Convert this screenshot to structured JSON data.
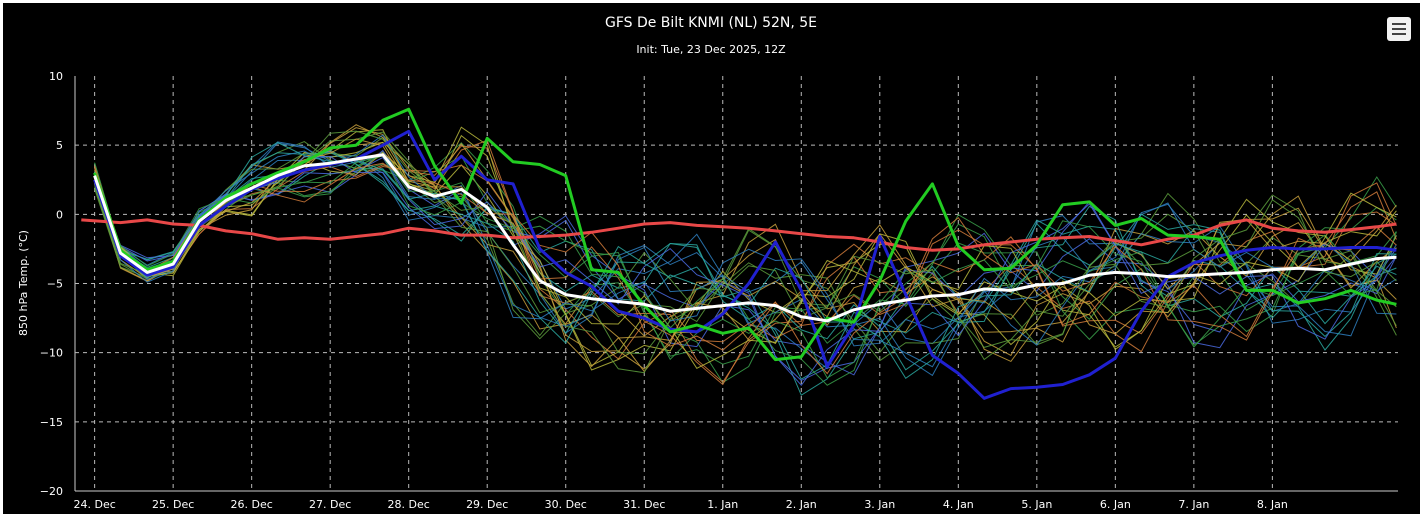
{
  "chart_data": {
    "type": "line",
    "title": "GFS De Bilt KNMI (NL) 52N, 5E",
    "subtitle": "Init: Tue, 23 Dec 2025, 12Z",
    "ylabel": "850 hPa Temp. (°C)",
    "xlabel": "",
    "ylim": [
      -20,
      10
    ],
    "yticks": [
      "10",
      "5",
      "0",
      "−5",
      "−10",
      "−15",
      "−20"
    ],
    "ytick_values": [
      10,
      5,
      0,
      -5,
      -10,
      -15,
      -20
    ],
    "x_range_days": [
      23.75,
      40.6
    ],
    "xticks": [
      "24. Dec",
      "25. Dec",
      "26. Dec",
      "27. Dec",
      "28. Dec",
      "29. Dec",
      "30. Dec",
      "31. Dec",
      "1. Jan",
      "2. Jan",
      "3. Jan",
      "4. Jan",
      "5. Jan",
      "6. Jan",
      "7. Jan",
      "8. Jan"
    ],
    "grid": true,
    "colors": {
      "background": "#000000",
      "grid": "#bbbbbb",
      "text": "#ffffff",
      "mean": "#ffffff",
      "control": "#2020d0",
      "operational": "#22cc22",
      "climate": "#e84848",
      "members": [
        "#2e7fc0",
        "#3aa04a",
        "#c8a03c",
        "#2aa8a0",
        "#d07a3a",
        "#5c9c3c",
        "#4a6ae0",
        "#b8b83c"
      ]
    },
    "series": [
      {
        "role": "mean",
        "x": [
          24.0,
          24.33,
          24.67,
          25.0,
          25.33,
          25.67,
          26.0,
          26.33,
          26.67,
          27.0,
          27.33,
          27.67,
          28.0,
          28.33,
          28.67,
          29.0,
          29.33,
          29.67,
          30.0,
          30.33,
          30.67,
          31.0,
          31.33,
          31.67,
          32.0,
          32.33,
          32.67,
          33.0,
          33.33,
          33.67,
          34.0,
          34.33,
          34.67,
          35.0,
          35.33,
          35.67,
          36.0,
          36.33,
          36.67,
          37.0,
          37.33,
          37.67,
          38.0,
          38.33,
          38.67,
          39.0,
          39.33,
          39.67,
          40.0,
          40.33,
          40.58
        ],
        "values": [
          2.8,
          -2.8,
          -4.2,
          -3.6,
          -0.5,
          1.0,
          1.9,
          2.8,
          3.5,
          3.7,
          4.0,
          4.3,
          2.0,
          1.3,
          1.8,
          0.5,
          -2.2,
          -4.8,
          -5.8,
          -6.1,
          -6.3,
          -6.5,
          -7.0,
          -6.8,
          -6.6,
          -6.4,
          -6.6,
          -7.4,
          -7.7,
          -6.9,
          -6.5,
          -6.2,
          -5.9,
          -5.8,
          -5.4,
          -5.5,
          -5.1,
          -5.0,
          -4.4,
          -4.2,
          -4.3,
          -4.5,
          -4.4,
          -4.3,
          -4.2,
          -4.0,
          -3.9,
          -4.0,
          -3.6,
          -3.2,
          -3.1
        ]
      },
      {
        "role": "control",
        "x": [
          24.0,
          24.33,
          24.67,
          25.0,
          25.33,
          25.67,
          26.0,
          26.33,
          26.67,
          27.0,
          27.33,
          27.67,
          28.0,
          28.33,
          28.67,
          29.0,
          29.33,
          29.67,
          30.0,
          30.33,
          30.67,
          31.0,
          31.33,
          31.67,
          32.0,
          32.33,
          32.67,
          33.0,
          33.33,
          33.67,
          34.0,
          34.33,
          34.67,
          35.0,
          35.33,
          35.67,
          36.0,
          36.33,
          36.67,
          37.0,
          37.33,
          37.67,
          38.0,
          38.33,
          38.67,
          39.0,
          39.33,
          39.67,
          40.0,
          40.33,
          40.58
        ],
        "values": [
          2.5,
          -3.0,
          -4.4,
          -3.8,
          -0.8,
          0.6,
          1.8,
          2.6,
          3.2,
          3.6,
          4.0,
          5.0,
          6.0,
          2.5,
          4.2,
          2.5,
          2.2,
          -2.5,
          -4.2,
          -5.2,
          -7.0,
          -7.5,
          -8.3,
          -8.5,
          -7.2,
          -5.0,
          -2.0,
          -5.5,
          -11.0,
          -8.0,
          -1.6,
          -5.8,
          -10.2,
          -11.5,
          -13.3,
          -12.6,
          -12.5,
          -12.3,
          -11.6,
          -10.4,
          -7.0,
          -4.5,
          -3.5,
          -3.0,
          -2.6,
          -2.4,
          -2.5,
          -2.5,
          -2.4,
          -2.4,
          -2.6
        ]
      },
      {
        "role": "operational",
        "x": [
          24.0,
          24.33,
          24.67,
          25.0,
          25.33,
          25.67,
          26.0,
          26.33,
          26.67,
          27.0,
          27.33,
          27.67,
          28.0,
          28.33,
          28.67,
          29.0,
          29.33,
          29.67,
          30.0,
          30.33,
          30.67,
          31.0,
          31.33,
          31.67,
          32.0,
          32.33,
          32.67,
          33.0,
          33.33,
          33.67,
          34.0,
          34.33,
          34.67,
          35.0,
          35.33,
          35.67,
          36.0,
          36.33,
          36.67,
          37.0,
          37.33,
          37.67,
          38.0,
          38.33,
          38.67,
          39.0,
          39.33,
          39.67,
          40.0,
          40.33,
          40.58
        ],
        "values": [
          3.0,
          -2.6,
          -4.0,
          -3.4,
          -0.4,
          1.2,
          2.2,
          3.0,
          3.8,
          4.8,
          5.0,
          6.8,
          7.6,
          3.5,
          0.8,
          5.5,
          3.8,
          3.6,
          2.8,
          -4.0,
          -4.2,
          -6.6,
          -8.5,
          -8.0,
          -8.6,
          -8.2,
          -10.5,
          -10.3,
          -7.5,
          -7.8,
          -4.8,
          -0.5,
          2.2,
          -2.3,
          -4.0,
          -3.9,
          -2.2,
          0.7,
          0.9,
          -0.8,
          -0.3,
          -1.5,
          -1.6,
          -1.8,
          -5.5,
          -5.5,
          -6.4,
          -6.1,
          -5.5,
          -6.2,
          -6.5
        ]
      },
      {
        "role": "climate",
        "x": [
          23.83,
          24.33,
          24.67,
          25.0,
          25.33,
          25.67,
          26.0,
          26.33,
          26.67,
          27.0,
          27.33,
          27.67,
          28.0,
          28.33,
          28.67,
          29.0,
          29.33,
          29.67,
          30.0,
          30.33,
          30.67,
          31.0,
          31.33,
          31.67,
          32.0,
          32.33,
          32.67,
          33.0,
          33.33,
          33.67,
          34.0,
          34.33,
          34.67,
          35.0,
          35.33,
          35.67,
          36.0,
          36.33,
          36.67,
          37.0,
          37.33,
          37.67,
          38.0,
          38.33,
          38.67,
          39.0,
          39.33,
          39.67,
          40.0,
          40.33,
          40.58
        ],
        "values": [
          -0.4,
          -0.6,
          -0.4,
          -0.7,
          -0.8,
          -1.2,
          -1.4,
          -1.8,
          -1.7,
          -1.8,
          -1.6,
          -1.4,
          -1.0,
          -1.2,
          -1.5,
          -1.5,
          -1.7,
          -1.6,
          -1.5,
          -1.3,
          -1.0,
          -0.7,
          -0.6,
          -0.8,
          -0.9,
          -1.0,
          -1.2,
          -1.4,
          -1.6,
          -1.7,
          -2.0,
          -2.4,
          -2.6,
          -2.5,
          -2.2,
          -2.0,
          -1.8,
          -1.7,
          -1.6,
          -1.9,
          -2.2,
          -1.8,
          -1.5,
          -0.8,
          -0.4,
          -1.0,
          -1.2,
          -1.3,
          -1.1,
          -0.9,
          -0.7
        ]
      }
    ]
  }
}
